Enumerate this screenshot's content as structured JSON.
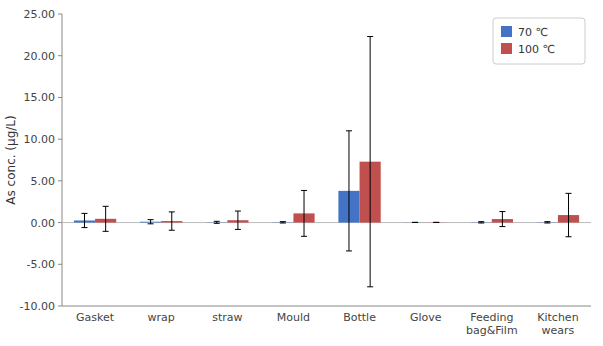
{
  "chart_data": {
    "type": "bar",
    "categories": [
      "Gasket",
      "wrap",
      "straw",
      "Mould",
      "Bottle",
      "Glove",
      "Feeding\nbag&Film",
      "Kitchen\nwears"
    ],
    "series": [
      {
        "name": "70 ℃",
        "color": "#4472c4",
        "values": [
          0.25,
          0.1,
          0.03,
          0.03,
          3.8,
          0.02,
          0.03,
          0.03
        ],
        "errors": [
          0.85,
          0.25,
          0.12,
          0.08,
          7.2,
          0.0,
          0.08,
          0.08
        ]
      },
      {
        "name": "100 ℃",
        "color": "#c0504d",
        "values": [
          0.45,
          0.18,
          0.28,
          1.1,
          7.3,
          0.02,
          0.42,
          0.9
        ],
        "errors": [
          1.5,
          1.1,
          1.1,
          2.75,
          15.0,
          0.0,
          0.9,
          2.6
        ]
      }
    ],
    "y_label": "As conc. (μg/L)",
    "ylim": [
      -10,
      25
    ],
    "yticks": [
      {
        "value": -10,
        "label": "-10.00"
      },
      {
        "value": -5,
        "label": "-5.00"
      },
      {
        "value": 0,
        "label": "0.00"
      },
      {
        "value": 5,
        "label": "5.00"
      },
      {
        "value": 10,
        "label": "10.00"
      },
      {
        "value": 15,
        "label": "15.00"
      },
      {
        "value": 20,
        "label": "20.00"
      },
      {
        "value": 25,
        "label": "25.00"
      }
    ],
    "grid": false,
    "legend": "upper right"
  }
}
